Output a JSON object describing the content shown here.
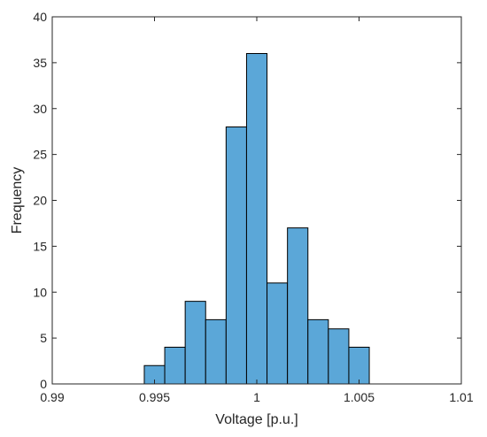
{
  "chart_data": {
    "type": "bar",
    "title": "",
    "xlabel": "Voltage [p.u.]",
    "ylabel": "Frequency",
    "xlim": [
      0.99,
      1.01
    ],
    "ylim": [
      0,
      40
    ],
    "grid": false,
    "bar_color": "#5ba7d8",
    "edge_color": "#000000",
    "bin_width": 0.001,
    "bins": [
      {
        "x0": 0.9945,
        "x1": 0.9955,
        "value": 2
      },
      {
        "x0": 0.9955,
        "x1": 0.9965,
        "value": 4
      },
      {
        "x0": 0.9965,
        "x1": 0.9975,
        "value": 9
      },
      {
        "x0": 0.9975,
        "x1": 0.9985,
        "value": 7
      },
      {
        "x0": 0.9985,
        "x1": 0.9995,
        "value": 28
      },
      {
        "x0": 0.9995,
        "x1": 1.0005,
        "value": 36
      },
      {
        "x0": 1.0005,
        "x1": 1.0015,
        "value": 11
      },
      {
        "x0": 1.0015,
        "x1": 1.0025,
        "value": 17
      },
      {
        "x0": 1.0025,
        "x1": 1.0035,
        "value": 7
      },
      {
        "x0": 1.0035,
        "x1": 1.0045,
        "value": 6
      },
      {
        "x0": 1.0045,
        "x1": 1.0055,
        "value": 4
      }
    ],
    "x_ticks": [
      {
        "value": 0.99,
        "label": "0.99"
      },
      {
        "value": 0.995,
        "label": "0.995"
      },
      {
        "value": 1.0,
        "label": "1"
      },
      {
        "value": 1.005,
        "label": "1.005"
      },
      {
        "value": 1.01,
        "label": "1.01"
      }
    ],
    "y_ticks": [
      {
        "value": 0,
        "label": "0"
      },
      {
        "value": 5,
        "label": "5"
      },
      {
        "value": 10,
        "label": "10"
      },
      {
        "value": 15,
        "label": "15"
      },
      {
        "value": 20,
        "label": "20"
      },
      {
        "value": 25,
        "label": "25"
      },
      {
        "value": 30,
        "label": "30"
      },
      {
        "value": 35,
        "label": "35"
      },
      {
        "value": 40,
        "label": "40"
      }
    ]
  }
}
